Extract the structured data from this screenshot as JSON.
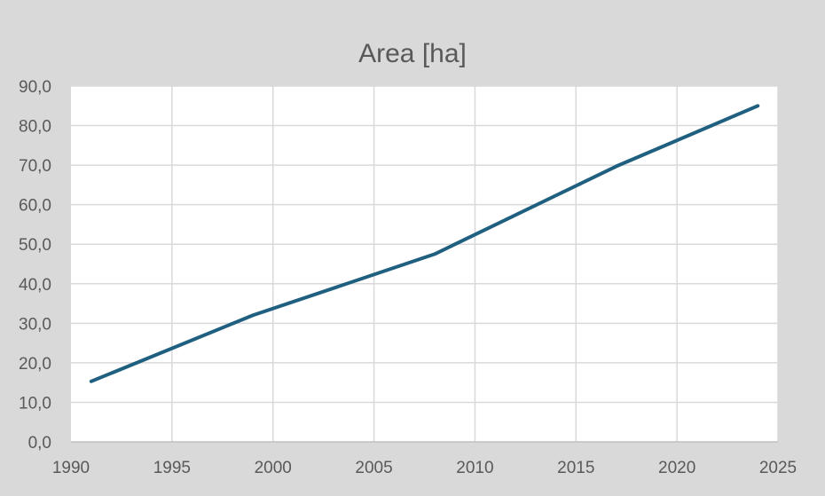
{
  "chart_data": {
    "type": "line",
    "title": "Area [ha]",
    "xlabel": "",
    "ylabel": "",
    "xlim": [
      1990,
      2025
    ],
    "ylim": [
      0,
      90
    ],
    "xticks": [
      1990,
      1995,
      2000,
      2005,
      2010,
      2015,
      2020,
      2025
    ],
    "yticks": [
      0,
      10,
      20,
      30,
      40,
      50,
      60,
      70,
      80,
      90
    ],
    "ytick_labels": [
      "0,0",
      "10,0",
      "20,0",
      "30,0",
      "40,0",
      "50,0",
      "60,0",
      "70,0",
      "80,0",
      "90,0"
    ],
    "grid": true,
    "legend": "none",
    "colors": {
      "background": "#d9d9d9",
      "plot_area": "#ffffff",
      "grid": "#d9d9d9",
      "line": "#1f5f7f",
      "text": "#595959"
    },
    "series": [
      {
        "x": [
          1991,
          1999,
          2008,
          2017,
          2024
        ],
        "y": [
          15.3,
          32.0,
          47.5,
          69.7,
          85.0
        ]
      }
    ]
  }
}
